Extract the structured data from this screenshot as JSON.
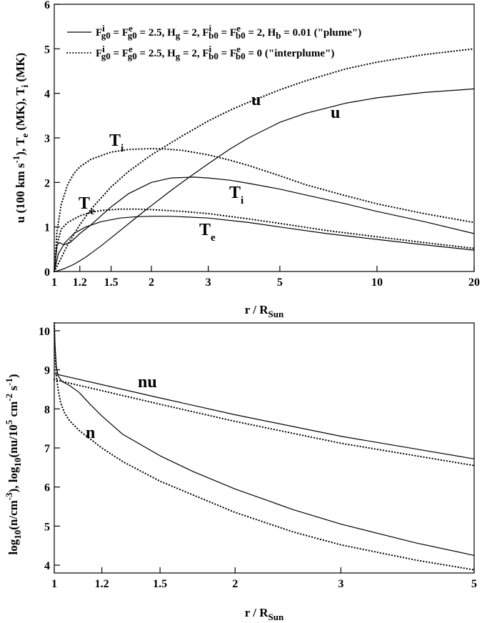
{
  "chart_data": [
    {
      "type": "line",
      "xscale": "log",
      "xlim": [
        1,
        20
      ],
      "ylim": [
        0,
        6
      ],
      "xticks": [
        1,
        1.2,
        1.5,
        2,
        3,
        5,
        10,
        20
      ],
      "xtick_labels": [
        "1",
        "1.2",
        "1.5",
        "2",
        "3",
        "5",
        "10",
        "20"
      ],
      "yticks": [
        0,
        1,
        2,
        3,
        4,
        5,
        6
      ],
      "ytick_labels": [
        "0",
        "1",
        "2",
        "3",
        "4",
        "5",
        "6"
      ],
      "xlabel": {
        "main": "r / R",
        "sub": "Sun"
      },
      "ylabel": {
        "p1": "u (100 km s",
        "p1_sup": "-1",
        "p2": "), T",
        "p2_sub": "e",
        "p3": " (MK), T",
        "p3_sub": "i",
        "p4": " (MK)"
      },
      "legend": [
        {
          "style": "solid",
          "parts": [
            "F",
            "i",
            "g0",
            " = F",
            "e",
            "g0",
            " = 2.5, H",
            "g",
            " = 2, F",
            "i",
            "b0",
            " = F",
            "e",
            "b0",
            " = 2, H",
            "b",
            " = 0.01 (\"plume\")"
          ]
        },
        {
          "style": "dotted",
          "parts": [
            "F",
            "i",
            "g0",
            " = F",
            "e",
            "g0",
            " = 2.5, H",
            "g",
            " = 2, F",
            "i",
            "b0",
            " = F",
            "e",
            "b0",
            " = 0 (\"interplume\")"
          ]
        }
      ],
      "annotations": [
        {
          "id": "u-plume",
          "main": "u",
          "sub": ""
        },
        {
          "id": "u-interplume",
          "main": "u",
          "sub": ""
        },
        {
          "id": "Ti-plume",
          "main": "T",
          "sub": "i"
        },
        {
          "id": "Ti-interplume",
          "main": "T",
          "sub": "i"
        },
        {
          "id": "Te-plume",
          "main": "T",
          "sub": "e"
        },
        {
          "id": "Te-interplume",
          "main": "T",
          "sub": "e"
        }
      ],
      "series": [
        {
          "name": "u plume",
          "style": "solid",
          "x": [
            1.0,
            1.03,
            1.08,
            1.15,
            1.25,
            1.4,
            1.6,
            1.8,
            2.0,
            2.3,
            2.6,
            3.0,
            3.5,
            4.0,
            5.0,
            6.0,
            8.0,
            10.0,
            14.0,
            20.0
          ],
          "y": [
            0.0,
            0.02,
            0.07,
            0.16,
            0.32,
            0.58,
            0.92,
            1.22,
            1.48,
            1.82,
            2.1,
            2.42,
            2.75,
            3.0,
            3.35,
            3.55,
            3.78,
            3.9,
            4.02,
            4.1
          ]
        },
        {
          "name": "u interplume",
          "style": "dotted",
          "x": [
            1.0,
            1.05,
            1.1,
            1.2,
            1.3,
            1.5,
            1.7,
            2.0,
            2.5,
            3.0,
            3.5,
            4.0,
            5.0,
            6.0,
            8.0,
            10.0,
            14.0,
            20.0
          ],
          "y": [
            0.0,
            0.3,
            0.6,
            1.05,
            1.4,
            1.9,
            2.25,
            2.62,
            3.05,
            3.38,
            3.62,
            3.8,
            4.08,
            4.28,
            4.55,
            4.7,
            4.87,
            5.0
          ]
        },
        {
          "name": "Ti plume",
          "style": "solid",
          "x": [
            1.0,
            1.02,
            1.04,
            1.07,
            1.12,
            1.2,
            1.3,
            1.5,
            1.7,
            2.0,
            2.3,
            2.7,
            3.0,
            3.5,
            4.0,
            5.0,
            6.0,
            8.0,
            10.0,
            14.0,
            20.0
          ],
          "y": [
            0.0,
            0.6,
            0.65,
            0.6,
            0.65,
            0.85,
            1.05,
            1.45,
            1.75,
            2.0,
            2.1,
            2.12,
            2.1,
            2.05,
            1.98,
            1.85,
            1.72,
            1.52,
            1.35,
            1.12,
            0.85
          ]
        },
        {
          "name": "Ti interplume",
          "style": "dotted",
          "x": [
            1.0,
            1.02,
            1.05,
            1.1,
            1.15,
            1.2,
            1.3,
            1.5,
            1.7,
            2.0,
            2.2,
            2.5,
            3.0,
            3.5,
            4.0,
            5.0,
            6.0,
            8.0,
            10.0,
            14.0,
            20.0
          ],
          "y": [
            0.0,
            0.9,
            1.5,
            1.95,
            2.2,
            2.35,
            2.52,
            2.68,
            2.74,
            2.76,
            2.75,
            2.72,
            2.62,
            2.5,
            2.38,
            2.15,
            1.95,
            1.7,
            1.52,
            1.3,
            1.1
          ]
        },
        {
          "name": "Te plume",
          "style": "solid",
          "x": [
            1.0,
            1.03,
            1.08,
            1.15,
            1.25,
            1.4,
            1.6,
            1.8,
            2.0,
            2.3,
            3.0,
            4.0,
            5.0,
            7.0,
            10.0,
            14.0,
            20.0
          ],
          "y": [
            0.0,
            0.4,
            0.65,
            0.85,
            1.0,
            1.12,
            1.2,
            1.23,
            1.24,
            1.24,
            1.2,
            1.1,
            1.0,
            0.85,
            0.72,
            0.6,
            0.48
          ]
        },
        {
          "name": "Te interplume",
          "style": "dotted",
          "x": [
            1.0,
            1.02,
            1.05,
            1.1,
            1.2,
            1.3,
            1.4,
            1.6,
            1.8,
            2.0,
            2.5,
            3.0,
            4.0,
            5.0,
            7.0,
            10.0,
            14.0,
            20.0
          ],
          "y": [
            0.0,
            0.6,
            0.95,
            1.1,
            1.25,
            1.33,
            1.37,
            1.4,
            1.4,
            1.39,
            1.35,
            1.3,
            1.18,
            1.08,
            0.92,
            0.78,
            0.65,
            0.52
          ]
        }
      ]
    },
    {
      "type": "line",
      "xscale": "log",
      "xlim": [
        1,
        5
      ],
      "ylim": [
        3.8,
        10.2
      ],
      "xticks": [
        1,
        1.2,
        1.5,
        2,
        3,
        5
      ],
      "xtick_labels": [
        "1",
        "1.2",
        "1.5",
        "2",
        "3",
        "5"
      ],
      "yticks": [
        4,
        5,
        6,
        7,
        8,
        9,
        10
      ],
      "ytick_labels": [
        "4",
        "5",
        "6",
        "7",
        "8",
        "9",
        "10"
      ],
      "xlabel": {
        "main": "r / R",
        "sub": "Sun"
      },
      "ylabel": {
        "p1": "log",
        "p1_sub": "10",
        "p2": "(n/cm",
        "p2_sup": "-3",
        "p3": "), log",
        "p3_sub": "10",
        "p4": "(nu/10",
        "p4_sup": "5",
        "p5": " cm",
        "p5_sup": "-2",
        "p6": " s",
        "p6_sup": "-1",
        "p7": ")"
      },
      "annotations": [
        {
          "id": "nu",
          "main": "nu",
          "sub": ""
        },
        {
          "id": "n",
          "main": "n",
          "sub": ""
        }
      ],
      "series": [
        {
          "name": "nu plume",
          "style": "solid",
          "x": [
            1.0,
            1.5,
            2.0,
            3.0,
            5.0
          ],
          "y": [
            8.9,
            8.28,
            7.85,
            7.3,
            6.72
          ]
        },
        {
          "name": "nu interplume",
          "style": "dotted",
          "x": [
            1.0,
            1.5,
            2.0,
            3.0,
            5.0
          ],
          "y": [
            8.75,
            8.12,
            7.68,
            7.12,
            6.55
          ]
        },
        {
          "name": "n plume",
          "style": "solid",
          "x": [
            1.0,
            1.003,
            1.008,
            1.015,
            1.03,
            1.06,
            1.1,
            1.15,
            1.2,
            1.3,
            1.5,
            1.7,
            2.0,
            2.5,
            3.0,
            4.0,
            5.0
          ],
          "y": [
            10.2,
            9.6,
            9.1,
            8.85,
            8.7,
            8.6,
            8.42,
            8.1,
            7.82,
            7.35,
            6.8,
            6.4,
            5.95,
            5.42,
            5.05,
            4.57,
            4.25
          ]
        },
        {
          "name": "n interplume",
          "style": "dotted",
          "x": [
            1.0,
            1.003,
            1.008,
            1.015,
            1.025,
            1.04,
            1.06,
            1.1,
            1.15,
            1.2,
            1.3,
            1.5,
            1.7,
            2.0,
            2.5,
            3.0,
            4.0,
            5.0
          ],
          "y": [
            10.2,
            9.4,
            8.85,
            8.5,
            8.15,
            7.9,
            7.7,
            7.45,
            7.22,
            7.0,
            6.65,
            6.15,
            5.8,
            5.35,
            4.85,
            4.52,
            4.13,
            3.88
          ]
        }
      ]
    }
  ]
}
